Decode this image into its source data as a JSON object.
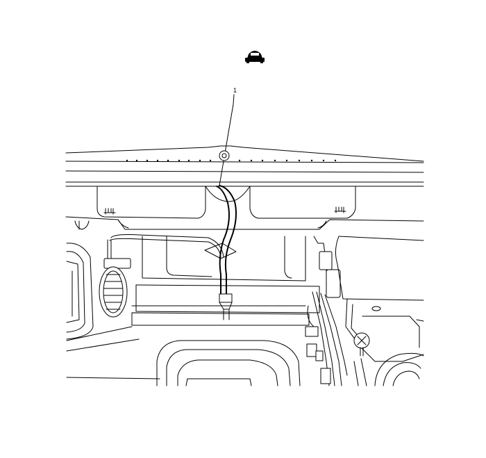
{
  "diagram": {
    "callouts": [
      {
        "id": "1",
        "label": "1"
      }
    ],
    "top_icon": "vehicle-front-view-icon",
    "colors": {
      "line": "#000000",
      "background": "#ffffff"
    }
  }
}
